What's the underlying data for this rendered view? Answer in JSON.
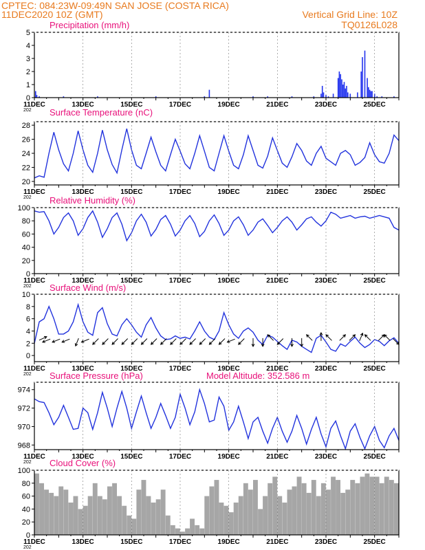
{
  "header": {
    "line1": "CPTEC:  084:23W-09:49N  SAN JOSE (COSTA RICA)",
    "line2": "11DEC2020 10Z (GMT)",
    "grid_note": "Vertical Grid Line: 10Z",
    "code": "TQ0126L028"
  },
  "x_axis": {
    "day_range": [
      11,
      26
    ],
    "tick_days": [
      11,
      13,
      15,
      17,
      19,
      21,
      23,
      25
    ],
    "tick_labels": [
      "11DEC",
      "13DEC",
      "15DEC",
      "17DEC",
      "19DEC",
      "21DEC",
      "23DEC",
      "25DEC"
    ],
    "year_label": "202"
  },
  "colors": {
    "line": "#2233dd",
    "bar": "#2233ee",
    "cloud": "#a6a6a6",
    "title": "#e8107a",
    "header": "#e87a1e"
  },
  "chart_data": [
    {
      "type": "bar",
      "title": "Precipitation (mm/h)",
      "ylim": [
        0,
        5
      ],
      "yticks": [
        0,
        1,
        2,
        3,
        4,
        5
      ],
      "x_unit": "day of December 2020",
      "x": [
        11.05,
        11.1,
        11.2,
        12.2,
        13.6,
        16.0,
        18.0,
        18.2,
        20.0,
        20.6,
        21.6,
        22.5,
        22.8,
        22.85,
        22.9,
        23.0,
        23.1,
        23.3,
        23.5,
        23.55,
        23.6,
        23.65,
        23.7,
        23.75,
        23.8,
        23.85,
        23.9,
        24.0,
        24.3,
        24.45,
        24.5,
        24.6,
        24.7,
        24.75,
        24.8,
        24.85,
        24.9,
        25.0,
        25.1,
        25.3,
        25.8
      ],
      "values": [
        0.5,
        0.2,
        0.1,
        0.1,
        0.1,
        0.1,
        0.1,
        0.6,
        0.1,
        0.1,
        0.1,
        0.1,
        0.3,
        0.9,
        0.4,
        0.2,
        0.1,
        0.3,
        1.5,
        2.0,
        1.8,
        1.4,
        1.0,
        1.2,
        0.7,
        0.9,
        0.4,
        0.3,
        0.4,
        2.0,
        3.1,
        3.6,
        1.5,
        0.8,
        0.6,
        0.5,
        0.5,
        0.3,
        0.1,
        0.1,
        0.1
      ]
    },
    {
      "type": "line",
      "title": "Surface Temperature (nC)",
      "ylim": [
        19.5,
        28.5
      ],
      "yticks": [
        20,
        22,
        24,
        26,
        28
      ],
      "x_unit": "day of December 2020",
      "x": [
        11.0,
        11.2,
        11.4,
        11.6,
        11.8,
        12.0,
        12.2,
        12.4,
        12.6,
        12.8,
        13.0,
        13.2,
        13.4,
        13.6,
        13.8,
        14.0,
        14.2,
        14.4,
        14.6,
        14.8,
        15.0,
        15.2,
        15.4,
        15.6,
        15.8,
        16.0,
        16.2,
        16.4,
        16.6,
        16.8,
        17.0,
        17.2,
        17.4,
        17.6,
        17.8,
        18.0,
        18.2,
        18.4,
        18.6,
        18.8,
        19.0,
        19.2,
        19.4,
        19.6,
        19.8,
        20.0,
        20.2,
        20.4,
        20.6,
        20.8,
        21.0,
        21.2,
        21.4,
        21.6,
        21.8,
        22.0,
        22.2,
        22.4,
        22.6,
        22.8,
        23.0,
        23.2,
        23.4,
        23.6,
        23.8,
        24.0,
        24.2,
        24.4,
        24.6,
        24.8,
        25.0,
        25.2,
        25.4,
        25.6,
        25.8,
        26.0
      ],
      "values": [
        20.5,
        20.8,
        20.6,
        24.0,
        27.0,
        24.5,
        22.5,
        21.5,
        24.0,
        27.2,
        24.5,
        22.3,
        21.3,
        24.0,
        27.3,
        24.5,
        22.4,
        21.2,
        24.5,
        27.5,
        24.5,
        22.3,
        21.8,
        24.0,
        26.3,
        24.2,
        22.3,
        21.5,
        23.8,
        26.0,
        24.3,
        22.5,
        21.8,
        24.0,
        26.5,
        24.3,
        22.0,
        21.5,
        24.0,
        26.5,
        24.3,
        22.3,
        21.8,
        23.8,
        26.5,
        24.4,
        22.3,
        21.9,
        23.6,
        26.2,
        24.4,
        22.6,
        22.0,
        23.5,
        25.4,
        24.4,
        22.9,
        22.3,
        24.0,
        25.0,
        23.3,
        22.8,
        22.3,
        24.0,
        24.4,
        23.8,
        22.3,
        22.7,
        23.4,
        25.5,
        23.8,
        22.8,
        22.6,
        24.0,
        26.6,
        25.8
      ]
    },
    {
      "type": "line",
      "title": "Relative Humidity (%)",
      "ylim": [
        0,
        100
      ],
      "yticks": [
        0,
        20,
        40,
        60,
        80,
        100
      ],
      "x_unit": "day of December 2020",
      "x": [
        11.0,
        11.2,
        11.4,
        11.6,
        11.8,
        12.0,
        12.2,
        12.4,
        12.6,
        12.8,
        13.0,
        13.2,
        13.4,
        13.6,
        13.8,
        14.0,
        14.2,
        14.4,
        14.6,
        14.8,
        15.0,
        15.2,
        15.4,
        15.6,
        15.8,
        16.0,
        16.2,
        16.4,
        16.6,
        16.8,
        17.0,
        17.2,
        17.4,
        17.6,
        17.8,
        18.0,
        18.2,
        18.4,
        18.6,
        18.8,
        19.0,
        19.2,
        19.4,
        19.6,
        19.8,
        20.0,
        20.2,
        20.4,
        20.6,
        20.8,
        21.0,
        21.2,
        21.4,
        21.6,
        21.8,
        22.0,
        22.2,
        22.4,
        22.6,
        22.8,
        23.0,
        23.2,
        23.4,
        23.6,
        23.8,
        24.0,
        24.2,
        24.4,
        24.6,
        24.8,
        25.0,
        25.2,
        25.4,
        25.6,
        25.8,
        26.0
      ],
      "values": [
        95,
        93,
        94,
        80,
        60,
        70,
        85,
        92,
        80,
        58,
        68,
        85,
        95,
        78,
        55,
        68,
        85,
        92,
        75,
        50,
        62,
        80,
        90,
        78,
        57,
        67,
        82,
        88,
        75,
        57,
        66,
        80,
        88,
        76,
        56,
        64,
        80,
        89,
        76,
        58,
        66,
        80,
        86,
        74,
        58,
        66,
        78,
        83,
        73,
        62,
        70,
        80,
        86,
        78,
        66,
        74,
        83,
        86,
        78,
        72,
        80,
        93,
        90,
        84,
        86,
        88,
        84,
        86,
        87,
        84,
        86,
        88,
        86,
        84,
        70,
        66
      ]
    },
    {
      "type": "line",
      "title": "Surface Wind (m/s)",
      "ylim": [
        -1,
        10
      ],
      "yticks": [
        0,
        2,
        4,
        6,
        8,
        10
      ],
      "x_unit": "day of December 2020",
      "x": [
        11.0,
        11.2,
        11.4,
        11.6,
        11.8,
        12.0,
        12.2,
        12.4,
        12.6,
        12.8,
        13.0,
        13.2,
        13.4,
        13.6,
        13.8,
        14.0,
        14.2,
        14.4,
        14.6,
        14.8,
        15.0,
        15.2,
        15.4,
        15.6,
        15.8,
        16.0,
        16.2,
        16.4,
        16.6,
        16.8,
        17.0,
        17.2,
        17.4,
        17.6,
        17.8,
        18.0,
        18.2,
        18.4,
        18.6,
        18.8,
        19.0,
        19.2,
        19.4,
        19.6,
        19.8,
        20.0,
        20.2,
        20.4,
        20.6,
        20.8,
        21.0,
        21.2,
        21.4,
        21.6,
        21.8,
        22.0,
        22.2,
        22.4,
        22.6,
        22.8,
        23.0,
        23.2,
        23.4,
        23.6,
        23.8,
        24.0,
        24.2,
        24.4,
        24.6,
        24.8,
        25.0,
        25.2,
        25.4,
        25.6,
        25.8,
        26.0
      ],
      "values": [
        2.0,
        5.5,
        6.0,
        8.0,
        6.0,
        3.5,
        3.5,
        4.0,
        5.5,
        8.3,
        5.5,
        3.8,
        3.3,
        7.0,
        7.8,
        5.2,
        3.5,
        3.2,
        5.0,
        6.0,
        5.0,
        3.8,
        3.0,
        5.0,
        6.2,
        4.5,
        3.2,
        2.6,
        2.7,
        3.2,
        2.8,
        3.0,
        2.7,
        4.0,
        5.5,
        4.0,
        3.0,
        2.6,
        4.0,
        7.0,
        5.0,
        3.5,
        2.8,
        4.0,
        4.5,
        3.8,
        2.5,
        1.8,
        3.3,
        3.0,
        2.3,
        1.6,
        1.0,
        2.5,
        2.2,
        1.5,
        1.0,
        0.5,
        2.8,
        3.3,
        2.2,
        1.0,
        0.7,
        1.9,
        1.5,
        2.3,
        3.0,
        2.0,
        1.3,
        1.8,
        2.6,
        2.3,
        1.6,
        2.4,
        2.9,
        2.0
      ],
      "vectors": [
        {
          "day": 11.25,
          "dir": "ene"
        },
        {
          "day": 11.6,
          "dir": "wsw"
        },
        {
          "day": 12.0,
          "dir": "wsw"
        },
        {
          "day": 12.4,
          "dir": "wsw"
        },
        {
          "day": 12.8,
          "dir": "ssw"
        },
        {
          "day": 13.2,
          "dir": "wsw"
        },
        {
          "day": 13.6,
          "dir": "sw"
        },
        {
          "day": 14.0,
          "dir": "sw"
        },
        {
          "day": 14.4,
          "dir": "sw"
        },
        {
          "day": 14.8,
          "dir": "sw"
        },
        {
          "day": 15.2,
          "dir": "sw"
        },
        {
          "day": 15.6,
          "dir": "sw"
        },
        {
          "day": 16.0,
          "dir": "sw"
        },
        {
          "day": 16.4,
          "dir": "sw"
        },
        {
          "day": 16.8,
          "dir": "sw"
        },
        {
          "day": 17.2,
          "dir": "sw"
        },
        {
          "day": 17.6,
          "dir": "sw"
        },
        {
          "day": 18.0,
          "dir": "sw"
        },
        {
          "day": 18.4,
          "dir": "sw"
        },
        {
          "day": 18.8,
          "dir": "sw"
        },
        {
          "day": 19.2,
          "dir": "wsw"
        },
        {
          "day": 19.6,
          "dir": "sw"
        },
        {
          "day": 20.0,
          "dir": "s"
        },
        {
          "day": 20.4,
          "dir": "s"
        },
        {
          "day": 20.8,
          "dir": "nw"
        },
        {
          "day": 21.2,
          "dir": "sw"
        },
        {
          "day": 21.6,
          "dir": "s"
        },
        {
          "day": 22.0,
          "dir": "s"
        },
        {
          "day": 22.4,
          "dir": "nw"
        },
        {
          "day": 22.8,
          "dir": "n"
        },
        {
          "day": 23.2,
          "dir": "nw"
        },
        {
          "day": 23.6,
          "dir": "ne"
        },
        {
          "day": 24.0,
          "dir": "ne"
        },
        {
          "day": 24.4,
          "dir": "nne"
        },
        {
          "day": 24.8,
          "dir": "nw"
        },
        {
          "day": 25.2,
          "dir": "ne"
        },
        {
          "day": 25.6,
          "dir": "nw"
        },
        {
          "day": 25.8,
          "dir": "se"
        }
      ]
    },
    {
      "type": "line",
      "title": "Surface Pressure (hPa)",
      "annotation": "Model Altitude: 352.586 m",
      "ylim": [
        967.5,
        974.8
      ],
      "yticks": [
        968,
        970,
        972,
        974
      ],
      "x_unit": "day of December 2020",
      "x": [
        11.0,
        11.2,
        11.4,
        11.6,
        11.8,
        12.0,
        12.2,
        12.4,
        12.6,
        12.8,
        13.0,
        13.2,
        13.4,
        13.6,
        13.8,
        14.0,
        14.2,
        14.4,
        14.6,
        14.8,
        15.0,
        15.2,
        15.4,
        15.6,
        15.8,
        16.0,
        16.2,
        16.4,
        16.6,
        16.8,
        17.0,
        17.2,
        17.4,
        17.6,
        17.8,
        18.0,
        18.2,
        18.4,
        18.6,
        18.8,
        19.0,
        19.2,
        19.4,
        19.6,
        19.8,
        20.0,
        20.2,
        20.4,
        20.6,
        20.8,
        21.0,
        21.2,
        21.4,
        21.6,
        21.8,
        22.0,
        22.2,
        22.4,
        22.6,
        22.8,
        23.0,
        23.2,
        23.4,
        23.6,
        23.8,
        24.0,
        24.2,
        24.4,
        24.6,
        24.8,
        25.0,
        25.2,
        25.4,
        25.6,
        25.8,
        26.0
      ],
      "values": [
        973.0,
        972.7,
        972.6,
        971.5,
        970.2,
        971.0,
        972.3,
        971.0,
        969.7,
        969.8,
        972.0,
        971.5,
        969.7,
        971.5,
        973.7,
        972.0,
        970.0,
        972.0,
        973.8,
        972.0,
        969.8,
        971.6,
        973.3,
        971.5,
        969.8,
        971.0,
        972.5,
        971.2,
        969.8,
        971.0,
        973.5,
        972.0,
        970.2,
        971.6,
        974.0,
        972.5,
        970.5,
        970.7,
        973.2,
        972.2,
        969.6,
        970.5,
        972.2,
        970.5,
        968.7,
        970.5,
        971.0,
        969.5,
        968.2,
        969.8,
        971.0,
        969.5,
        968.3,
        969.5,
        971.2,
        969.8,
        968.1,
        969.7,
        971.0,
        969.2,
        967.8,
        969.8,
        970.6,
        969.0,
        967.6,
        969.5,
        970.3,
        968.8,
        967.6,
        969.0,
        970.0,
        968.5,
        967.7,
        969.0,
        969.8,
        968.5
      ]
    },
    {
      "type": "bar",
      "title": "Cloud Cover (%)",
      "ylim": [
        0,
        100
      ],
      "yticks": [
        0,
        20,
        40,
        60,
        80,
        100
      ],
      "x_unit": "day of December 2020",
      "x": [
        11.0,
        11.2,
        11.4,
        11.6,
        11.8,
        12.0,
        12.2,
        12.4,
        12.6,
        12.8,
        13.0,
        13.2,
        13.4,
        13.6,
        13.8,
        14.0,
        14.2,
        14.4,
        14.6,
        14.8,
        15.0,
        15.2,
        15.4,
        15.6,
        15.8,
        16.0,
        16.2,
        16.4,
        16.6,
        16.8,
        17.0,
        17.2,
        17.4,
        17.6,
        17.8,
        18.0,
        18.2,
        18.4,
        18.6,
        18.8,
        19.0,
        19.2,
        19.4,
        19.6,
        19.8,
        20.0,
        20.2,
        20.4,
        20.6,
        20.8,
        21.0,
        21.2,
        21.4,
        21.6,
        21.8,
        22.0,
        22.2,
        22.4,
        22.6,
        22.8,
        23.0,
        23.2,
        23.4,
        23.6,
        23.8,
        24.0,
        24.2,
        24.4,
        24.6,
        24.8,
        25.0,
        25.2,
        25.4,
        25.6,
        25.8
      ],
      "values": [
        95,
        80,
        70,
        65,
        60,
        75,
        70,
        50,
        60,
        40,
        45,
        60,
        80,
        60,
        55,
        75,
        80,
        60,
        45,
        30,
        25,
        70,
        85,
        60,
        50,
        55,
        70,
        30,
        15,
        10,
        5,
        10,
        25,
        15,
        10,
        60,
        75,
        85,
        50,
        45,
        35,
        50,
        60,
        80,
        70,
        85,
        40,
        60,
        80,
        90,
        60,
        50,
        70,
        75,
        90,
        80,
        65,
        85,
        60,
        80,
        70,
        90,
        85,
        65,
        70,
        85,
        80,
        90,
        95,
        90,
        90,
        80,
        90,
        85,
        80
      ]
    }
  ]
}
